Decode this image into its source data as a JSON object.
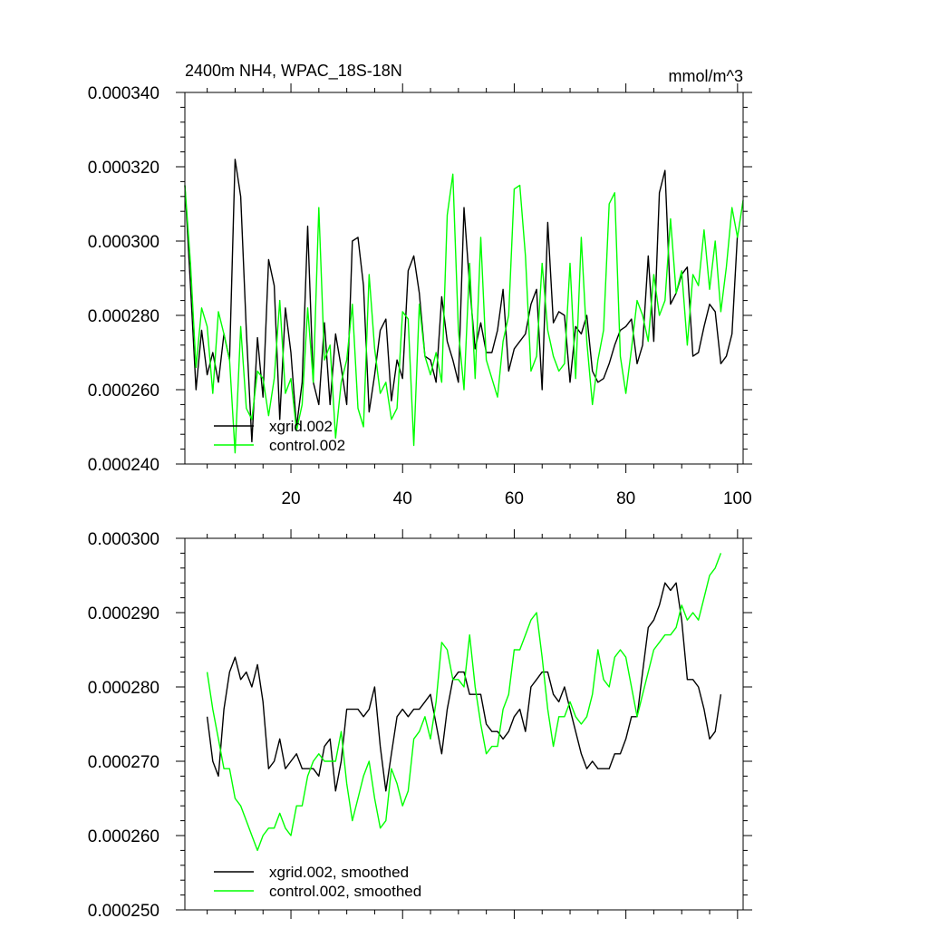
{
  "chart_data": [
    {
      "type": "line",
      "title": "2400m NH4, WPAC_18S-18N",
      "units": "mmol/m^3",
      "xlabel": "",
      "ylabel": "",
      "xlim": [
        1,
        101
      ],
      "ylim": [
        0.00024,
        0.00034
      ],
      "xticks": [
        20,
        40,
        60,
        80,
        100
      ],
      "xtick_labels": [
        "20",
        "40",
        "60",
        "80",
        "100"
      ],
      "yticks": [
        0.00024,
        0.00026,
        0.00028,
        0.0003,
        0.00032,
        0.00034
      ],
      "ytick_labels": [
        "0.000240",
        "0.000260",
        "0.000280",
        "0.000300",
        "0.000320",
        "0.000340"
      ],
      "legend_position": "bottom-left",
      "x_start": 1,
      "series": [
        {
          "name": "xgrid.002",
          "color": "#000000",
          "values": [
            0.000315,
            0.000288,
            0.00026,
            0.000276,
            0.000264,
            0.00027,
            0.000262,
            0.000275,
            0.000268,
            0.000322,
            0.000312,
            0.000276,
            0.000246,
            0.000274,
            0.000258,
            0.000295,
            0.000288,
            0.000252,
            0.000282,
            0.00027,
            0.00025,
            0.000262,
            0.000304,
            0.000262,
            0.000256,
            0.000278,
            0.000256,
            0.000275,
            0.000266,
            0.000256,
            0.0003,
            0.000301,
            0.000288,
            0.000254,
            0.000264,
            0.000276,
            0.000279,
            0.000257,
            0.000268,
            0.000263,
            0.000292,
            0.000296,
            0.000286,
            0.000269,
            0.000268,
            0.000262,
            0.000285,
            0.000273,
            0.000268,
            0.000262,
            0.000309,
            0.000288,
            0.000271,
            0.000278,
            0.00027,
            0.00027,
            0.000276,
            0.000287,
            0.000265,
            0.000271,
            0.000273,
            0.000275,
            0.000283,
            0.000287,
            0.00026,
            0.000305,
            0.000278,
            0.000281,
            0.00028,
            0.000262,
            0.000277,
            0.000275,
            0.00028,
            0.000265,
            0.000262,
            0.000263,
            0.000267,
            0.000272,
            0.000276,
            0.000277,
            0.000279,
            0.000267,
            0.000272,
            0.000296,
            0.000273,
            0.000313,
            0.000319,
            0.000283,
            0.000286,
            0.000291,
            0.000293,
            0.000269,
            0.00027,
            0.000277,
            0.000283,
            0.000281,
            0.000267,
            0.000269,
            0.000275,
            0.000302
          ]
        },
        {
          "name": "control.002",
          "color": "#00ff00",
          "values": [
            0.000315,
            0.000294,
            0.000266,
            0.000282,
            0.000277,
            0.000259,
            0.000281,
            0.000275,
            0.000268,
            0.000243,
            0.000277,
            0.000255,
            0.000252,
            0.000265,
            0.000263,
            0.000253,
            0.000263,
            0.000284,
            0.000259,
            0.000263,
            0.000249,
            0.000256,
            0.000282,
            0.000262,
            0.000309,
            0.000268,
            0.000272,
            0.000247,
            0.000262,
            0.000268,
            0.000283,
            0.000255,
            0.00025,
            0.000291,
            0.000271,
            0.000259,
            0.000262,
            0.000252,
            0.000255,
            0.000281,
            0.000279,
            0.000245,
            0.000283,
            0.000269,
            0.000264,
            0.00027,
            0.000262,
            0.000307,
            0.000318,
            0.000276,
            0.00026,
            0.000294,
            0.000263,
            0.000301,
            0.000268,
            0.000263,
            0.000258,
            0.000273,
            0.00028,
            0.000314,
            0.000315,
            0.000296,
            0.000265,
            0.000269,
            0.000294,
            0.000276,
            0.000269,
            0.000265,
            0.000267,
            0.000294,
            0.000263,
            0.000301,
            0.000273,
            0.000256,
            0.000268,
            0.000276,
            0.00031,
            0.000313,
            0.000269,
            0.000259,
            0.000271,
            0.000284,
            0.00028,
            0.000273,
            0.000291,
            0.00028,
            0.000284,
            0.000306,
            0.000286,
            0.000292,
            0.000272,
            0.000291,
            0.000288,
            0.000303,
            0.000287,
            0.0003,
            0.000281,
            0.000293,
            0.000309,
            0.000301,
            0.000311
          ]
        }
      ]
    },
    {
      "type": "line",
      "title": "",
      "xlabel": "",
      "ylabel": "",
      "xlim": [
        1,
        101
      ],
      "ylim": [
        0.00025,
        0.0003
      ],
      "xticks": [
        20,
        40,
        60,
        80,
        100
      ],
      "xtick_labels": [
        "",
        "",
        "",
        "",
        ""
      ],
      "yticks": [
        0.00025,
        0.00026,
        0.00027,
        0.00028,
        0.00029,
        0.0003
      ],
      "ytick_labels": [
        "0.000250",
        "0.000260",
        "0.000270",
        "0.000280",
        "0.000290",
        "0.000300"
      ],
      "legend_position": "bottom-left",
      "x_start": 5,
      "series": [
        {
          "name": "xgrid.002, smoothed",
          "color": "#000000",
          "values": [
            0.000276,
            0.00027,
            0.000268,
            0.000277,
            0.000282,
            0.000284,
            0.000281,
            0.000282,
            0.00028,
            0.000283,
            0.000278,
            0.000269,
            0.00027,
            0.000273,
            0.000269,
            0.00027,
            0.000271,
            0.000269,
            0.000269,
            0.000269,
            0.000268,
            0.000272,
            0.000273,
            0.000266,
            0.00027,
            0.000277,
            0.000277,
            0.000277,
            0.000276,
            0.000277,
            0.00028,
            0.000272,
            0.000266,
            0.000271,
            0.000276,
            0.000277,
            0.000276,
            0.000277,
            0.000277,
            0.000278,
            0.000279,
            0.000275,
            0.000271,
            0.000277,
            0.000281,
            0.000282,
            0.000282,
            0.000279,
            0.000279,
            0.000279,
            0.000275,
            0.000274,
            0.000274,
            0.000273,
            0.000274,
            0.000276,
            0.000277,
            0.000274,
            0.00028,
            0.000281,
            0.000282,
            0.000282,
            0.000279,
            0.000278,
            0.00028,
            0.000277,
            0.000274,
            0.000271,
            0.000269,
            0.00027,
            0.000269,
            0.000269,
            0.000269,
            0.000271,
            0.000271,
            0.000273,
            0.000276,
            0.000276,
            0.000282,
            0.000288,
            0.000289,
            0.000291,
            0.000294,
            0.000293,
            0.000294,
            0.000289,
            0.000281,
            0.000281,
            0.00028,
            0.000277,
            0.000273,
            0.000274,
            0.000279
          ]
        },
        {
          "name": "control.002, smoothed",
          "color": "#00ff00",
          "values": [
            0.000282,
            0.000277,
            0.000273,
            0.000269,
            0.000269,
            0.000265,
            0.000264,
            0.000262,
            0.00026,
            0.000258,
            0.00026,
            0.000261,
            0.000261,
            0.000263,
            0.000261,
            0.00026,
            0.000264,
            0.000264,
            0.000268,
            0.00027,
            0.000271,
            0.00027,
            0.00027,
            0.00027,
            0.000274,
            0.000267,
            0.000262,
            0.000265,
            0.000268,
            0.00027,
            0.000265,
            0.000261,
            0.000262,
            0.000269,
            0.000267,
            0.000264,
            0.000266,
            0.000273,
            0.000274,
            0.000276,
            0.000273,
            0.000278,
            0.000286,
            0.000285,
            0.000281,
            0.000281,
            0.00028,
            0.000287,
            0.00028,
            0.000275,
            0.000271,
            0.000272,
            0.000272,
            0.000277,
            0.000279,
            0.000285,
            0.000285,
            0.000287,
            0.000289,
            0.00029,
            0.000284,
            0.000277,
            0.000272,
            0.000276,
            0.000276,
            0.000278,
            0.000276,
            0.000275,
            0.000276,
            0.000279,
            0.000285,
            0.000281,
            0.00028,
            0.000284,
            0.000285,
            0.000284,
            0.00028,
            0.000276,
            0.000279,
            0.000282,
            0.000285,
            0.000286,
            0.000287,
            0.000287,
            0.000288,
            0.000291,
            0.000289,
            0.00029,
            0.000289,
            0.000292,
            0.000295,
            0.000296,
            0.000298
          ]
        }
      ]
    }
  ]
}
